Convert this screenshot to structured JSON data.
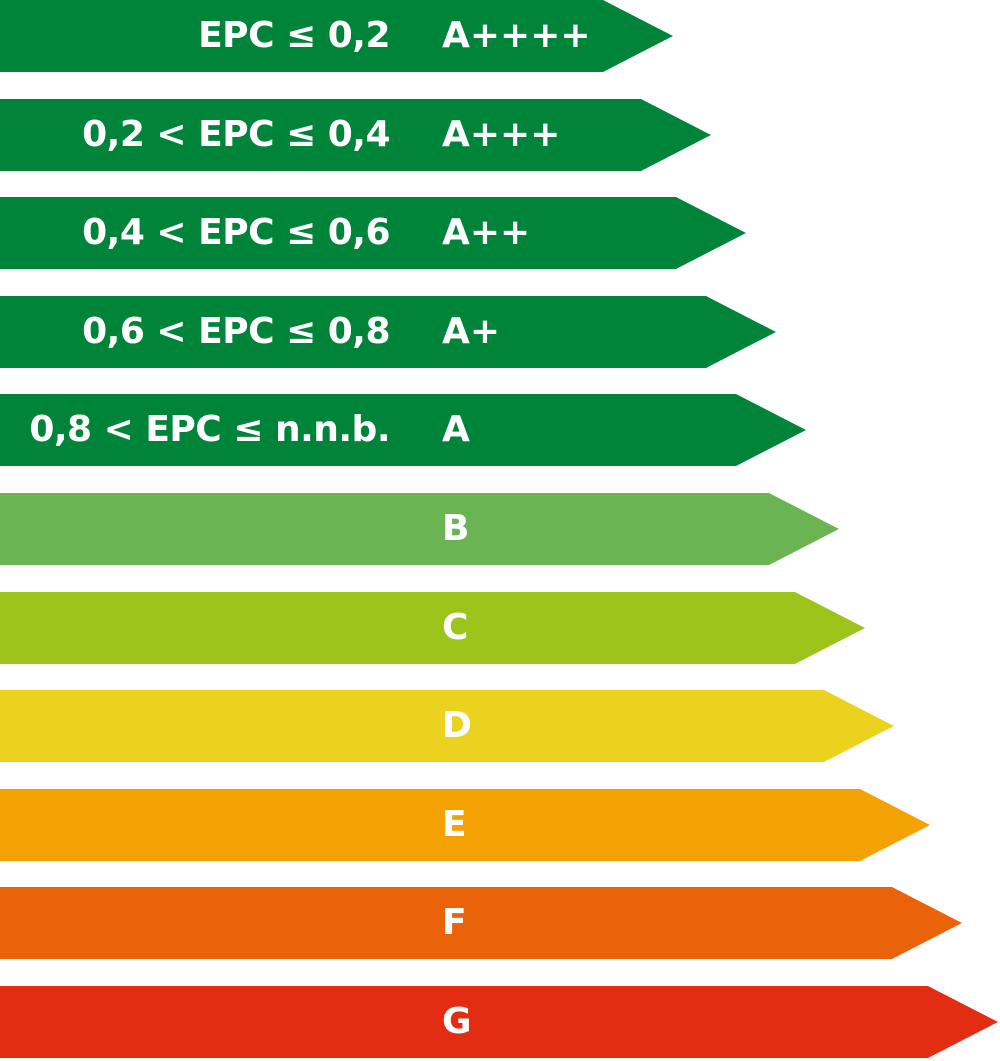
{
  "bars": [
    {
      "class": "A++++",
      "range": "EPC ≤ 0,2",
      "color": "#00843a"
    },
    {
      "class": "A+++",
      "range": "0,2 < EPC ≤ 0,4",
      "color": "#00843a"
    },
    {
      "class": "A++",
      "range": "0,4 < EPC ≤ 0,6",
      "color": "#00843a"
    },
    {
      "class": "A+",
      "range": "0,6 < EPC ≤ 0,8",
      "color": "#00843a"
    },
    {
      "class": "A",
      "range": "0,8 < EPC ≤ n.n.b.",
      "color": "#00843a"
    },
    {
      "class": "B",
      "range": "",
      "color": "#6bb453"
    },
    {
      "class": "C",
      "range": "",
      "color": "#9dc41b"
    },
    {
      "class": "D",
      "range": "",
      "color": "#ead21f"
    },
    {
      "class": "E",
      "range": "",
      "color": "#f4a203"
    },
    {
      "class": "F",
      "range": "",
      "color": "#ea6209"
    },
    {
      "class": "G",
      "range": "",
      "color": "#e32d12"
    }
  ]
}
